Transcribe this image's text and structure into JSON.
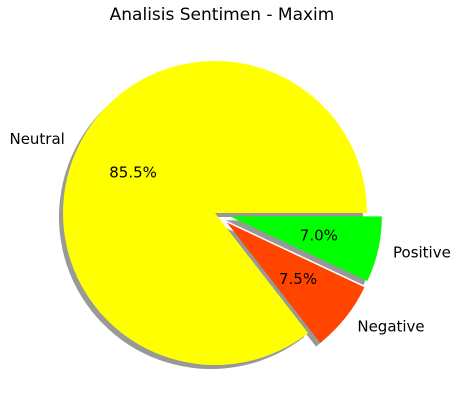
{
  "chart_data": {
    "type": "pie",
    "title": "Analisis Sentimen - Maxim",
    "categories": [
      "Neutral",
      "Negative",
      "Positive"
    ],
    "values": [
      85.5,
      7.5,
      7.0
    ],
    "value_labels": [
      "85.5%",
      "7.5%",
      "7.0%"
    ],
    "colors": [
      "#ffff00",
      "#ff4500",
      "#00ff00"
    ],
    "explode": [
      0,
      0.1,
      0.1
    ],
    "shadow": true
  }
}
